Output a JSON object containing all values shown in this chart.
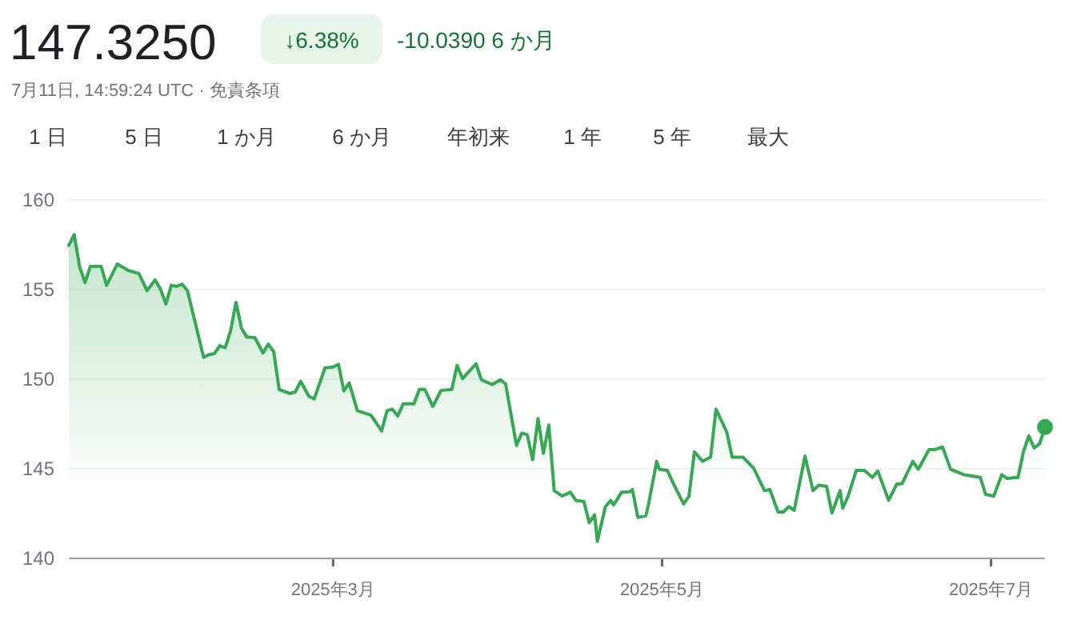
{
  "chart_data": {
    "type": "area",
    "title": "147.3250",
    "subtitle": "7月11日, 14:59:24 UTC · 免責条項",
    "annotations": [
      "↓6.38%",
      "-10.0390 6 か月",
      "1 日",
      "5 日",
      "1 か月",
      "6 か月",
      "年初来",
      "1 年",
      "5 年",
      "最大"
    ],
    "xlim": [
      "2025-01-11",
      "2025-07-11"
    ],
    "xticks": [
      {
        "value": "2025-03-01",
        "label": "2025年3月"
      },
      {
        "value": "2025-05-01",
        "label": "2025年5月"
      },
      {
        "value": "2025-07-01",
        "label": "2025年7月"
      }
    ],
    "ylim": [
      140,
      160
    ],
    "yticks": [
      140,
      145,
      150,
      155,
      160
    ],
    "grid": "y",
    "series": [
      {
        "color": "#34a853",
        "x": [
          "2025-01-11",
          "2025-01-12",
          "2025-01-13",
          "2025-01-14",
          "2025-01-15",
          "2025-01-17",
          "2025-01-18",
          "2025-01-20",
          "2025-01-22",
          "2025-01-24",
          "2025-01-25T12:00",
          "2025-01-27",
          "2025-01-28",
          "2025-01-29",
          "2025-01-30",
          "2025-01-31",
          "2025-02-01",
          "2025-02-02",
          "2025-02-05",
          "2025-02-06",
          "2025-02-07",
          "2025-02-08",
          "2025-02-09",
          "2025-02-10",
          "2025-02-11",
          "2025-02-12",
          "2025-02-13",
          "2025-02-14T12:00",
          "2025-02-16",
          "2025-02-17",
          "2025-02-18",
          "2025-02-19",
          "2025-02-21",
          "2025-02-22",
          "2025-02-23",
          "2025-02-24T12:00",
          "2025-02-25T12:00",
          "2025-02-27T12:00",
          "2025-03-01",
          "2025-03-02",
          "2025-03-03",
          "2025-03-04",
          "2025-03-05T12:00",
          "2025-03-08",
          "2025-03-10",
          "2025-03-11",
          "2025-03-12",
          "2025-03-13",
          "2025-03-14",
          "2025-03-16",
          "2025-03-17",
          "2025-03-18",
          "2025-03-19T12:00",
          "2025-03-21",
          "2025-03-23",
          "2025-03-24",
          "2025-03-25",
          "2025-03-27T12:00",
          "2025-03-28T12:00",
          "2025-03-30T12:00",
          "2025-04-01",
          "2025-04-02",
          "2025-04-04",
          "2025-04-05",
          "2025-04-06",
          "2025-04-07",
          "2025-04-08",
          "2025-04-09",
          "2025-04-10",
          "2025-04-11",
          "2025-04-12T12:00",
          "2025-04-14",
          "2025-04-15",
          "2025-04-16T12:00",
          "2025-04-17T12:00",
          "2025-04-18T12:00",
          "2025-04-19",
          "2025-04-20T12:00",
          "2025-04-21T12:00",
          "2025-04-22",
          "2025-04-23T12:00",
          "2025-04-25",
          "2025-04-25T12:00",
          "2025-04-26T12:00",
          "2025-04-28",
          "2025-04-28T12:00",
          "2025-04-30",
          "2025-04-30T12:00",
          "2025-05-02",
          "2025-05-03",
          "2025-05-05",
          "2025-05-06",
          "2025-05-07",
          "2025-05-08T12:00",
          "2025-05-10",
          "2025-05-11",
          "2025-05-13",
          "2025-05-14",
          "2025-05-16",
          "2025-05-18",
          "2025-05-20",
          "2025-05-21",
          "2025-05-22T12:00",
          "2025-05-23T12:00",
          "2025-05-24T12:00",
          "2025-05-25T12:00",
          "2025-05-27T12:00",
          "2025-05-29",
          "2025-05-30",
          "2025-05-31T12:00",
          "2025-06-01T12:00",
          "2025-06-03",
          "2025-06-03T12:00",
          "2025-06-04T12:00",
          "2025-06-06",
          "2025-06-07T12:00",
          "2025-06-09",
          "2025-06-10",
          "2025-06-12",
          "2025-06-13T12:00",
          "2025-06-14T12:00",
          "2025-06-16T12:00",
          "2025-06-17T12:00",
          "2025-06-19T12:00",
          "2025-06-20T12:00",
          "2025-06-22",
          "2025-06-23T12:00",
          "2025-06-26",
          "2025-06-29",
          "2025-06-30",
          "2025-07-01T12:00",
          "2025-07-03",
          "2025-07-04",
          "2025-07-06",
          "2025-07-07",
          "2025-07-08",
          "2025-07-09",
          "2025-07-10",
          "2025-07-11"
        ],
        "values": [
          157.47,
          158.07,
          156.28,
          155.39,
          156.3,
          156.3,
          155.24,
          156.43,
          156.07,
          155.9,
          154.94,
          155.54,
          155.03,
          154.2,
          155.24,
          155.18,
          155.3,
          154.94,
          151.22,
          151.37,
          151.43,
          151.87,
          151.76,
          152.71,
          154.29,
          152.86,
          152.35,
          152.32,
          151.46,
          151.96,
          151.52,
          149.43,
          149.2,
          149.29,
          149.88,
          149.05,
          148.9,
          150.63,
          150.68,
          150.83,
          149.35,
          149.79,
          148.24,
          148.0,
          147.11,
          148.24,
          148.33,
          147.95,
          148.63,
          148.63,
          149.43,
          149.43,
          148.48,
          149.37,
          149.43,
          150.77,
          150.03,
          150.86,
          149.97,
          149.7,
          149.97,
          149.73,
          146.31,
          146.99,
          146.9,
          145.5,
          147.8,
          145.86,
          147.44,
          143.78,
          143.48,
          143.69,
          143.24,
          143.18,
          141.99,
          142.44,
          140.95,
          142.89,
          143.24,
          142.98,
          143.69,
          143.72,
          143.84,
          142.29,
          142.38,
          143.04,
          145.42,
          144.97,
          144.91,
          144.23,
          143.04,
          143.48,
          145.95,
          145.42,
          145.65,
          148.33,
          147.05,
          145.65,
          145.65,
          145.03,
          143.78,
          143.84,
          142.59,
          142.59,
          142.89,
          142.68,
          145.71,
          143.78,
          144.08,
          144.02,
          142.53,
          143.78,
          142.8,
          143.48,
          144.91,
          144.91,
          144.52,
          144.88,
          143.24,
          144.14,
          144.17,
          145.42,
          144.97,
          146.07,
          146.07,
          146.22,
          144.97,
          144.67,
          144.52,
          143.57,
          143.48,
          144.67,
          144.46,
          144.52,
          145.95,
          146.84,
          146.16,
          146.4,
          147.33
        ]
      },
      {
        "type": "scatter",
        "color": "#34a853",
        "marker": "circle",
        "x": [
          "2025-07-11"
        ],
        "values": [
          147.33
        ]
      }
    ]
  }
}
